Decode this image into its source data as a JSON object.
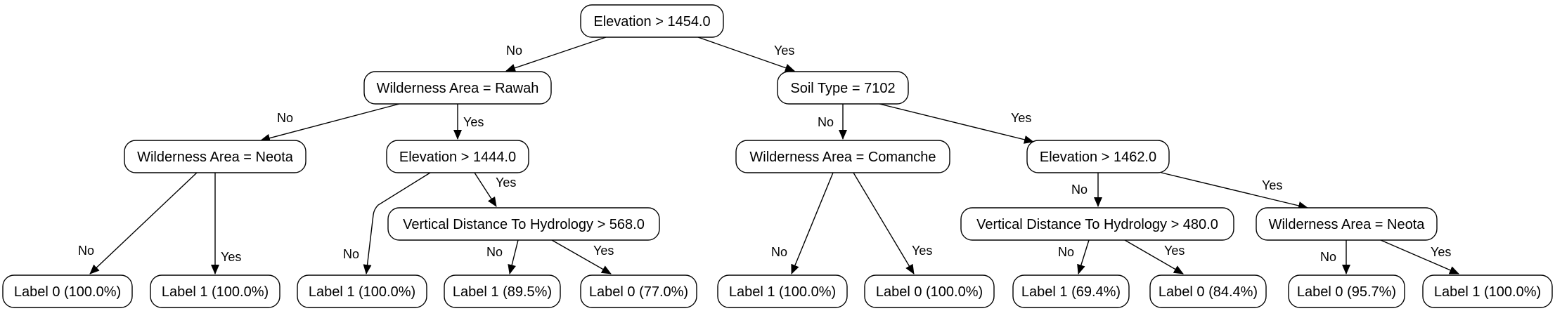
{
  "nodes": {
    "n0": "Elevation > 1454.0",
    "n1": "Wilderness Area = Rawah",
    "n2": "Soil Type = 7102",
    "n3": "Wilderness Area = Neota",
    "n4": "Elevation > 1444.0",
    "n5": "Wilderness Area = Comanche",
    "n6": "Elevation > 1462.0",
    "n7": "Vertical Distance To Hydrology > 568.0",
    "n8": "Vertical Distance To Hydrology > 480.0",
    "n9": "Wilderness Area = Neota",
    "l1": "Label 0 (100.0%)",
    "l2": "Label 1 (100.0%)",
    "l3": "Label 1 (100.0%)",
    "l4": "Label 1 (89.5%)",
    "l5": "Label 0 (77.0%)",
    "l6": "Label 1 (100.0%)",
    "l7": "Label 0 (100.0%)",
    "l8": "Label 1 (69.4%)",
    "l9": "Label 0 (84.4%)",
    "l10": "Label 0 (95.7%)",
    "l11": "Label 1 (100.0%)"
  },
  "edges": {
    "e0": "No",
    "e1": "Yes",
    "e2": "No",
    "e3": "Yes",
    "e4": "No",
    "e5": "Yes",
    "e6": "No",
    "e7": "Yes",
    "e8": "No",
    "e9": "Yes",
    "e10": "No",
    "e11": "Yes",
    "e12": "No",
    "e13": "Yes",
    "e14": "No",
    "e15": "Yes",
    "e16": "No",
    "e17": "Yes",
    "e18": "No",
    "e19": "Yes"
  }
}
